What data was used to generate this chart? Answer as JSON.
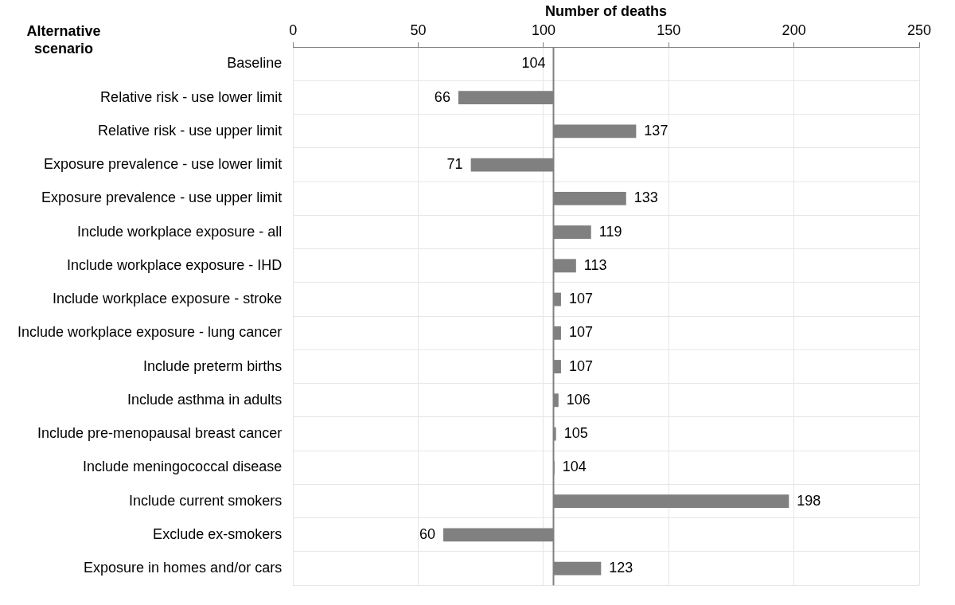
{
  "chart_data": {
    "type": "bar",
    "orientation": "horizontal",
    "xlabel": "Number of deaths",
    "ylabel": "Alternative scenario",
    "categories": [
      "Baseline",
      "Relative risk - use lower limit",
      "Relative risk - use upper limit",
      "Exposure prevalence - use lower limit",
      "Exposure prevalence - use upper limit",
      "Include workplace exposure - all",
      "Include workplace exposure - IHD",
      "Include workplace exposure - stroke",
      "Include workplace exposure - lung cancer",
      "Include preterm births",
      "Include asthma in adults",
      "Include pre-menopausal breast cancer",
      "Include meningococcal disease",
      "Include current smokers",
      "Exclude ex-smokers",
      "Exposure in homes and/or cars"
    ],
    "base": [
      null,
      104,
      104,
      104,
      104,
      104,
      104,
      104,
      104,
      104,
      104,
      104,
      104,
      104,
      104,
      104
    ],
    "values": [
      null,
      -38,
      33,
      -33,
      29,
      15,
      9,
      3,
      3,
      3,
      2,
      1,
      0.4,
      94,
      -44,
      19
    ],
    "value_labels": [
      null,
      "66",
      "137",
      "71",
      "133",
      "119",
      "113",
      "107",
      "107",
      "107",
      "106",
      "105",
      "104",
      "198",
      "60",
      "123"
    ],
    "color": "#808080",
    "xlim": [
      0,
      250
    ],
    "xticks": [
      0,
      50,
      100,
      150,
      200,
      250
    ],
    "ref_lines": [
      {
        "axis": "x",
        "value": 104,
        "color": "#808080"
      }
    ],
    "annotations": [
      {
        "text": "104",
        "x": 104,
        "y": "Baseline"
      }
    ],
    "grid": true,
    "legend": false
  }
}
